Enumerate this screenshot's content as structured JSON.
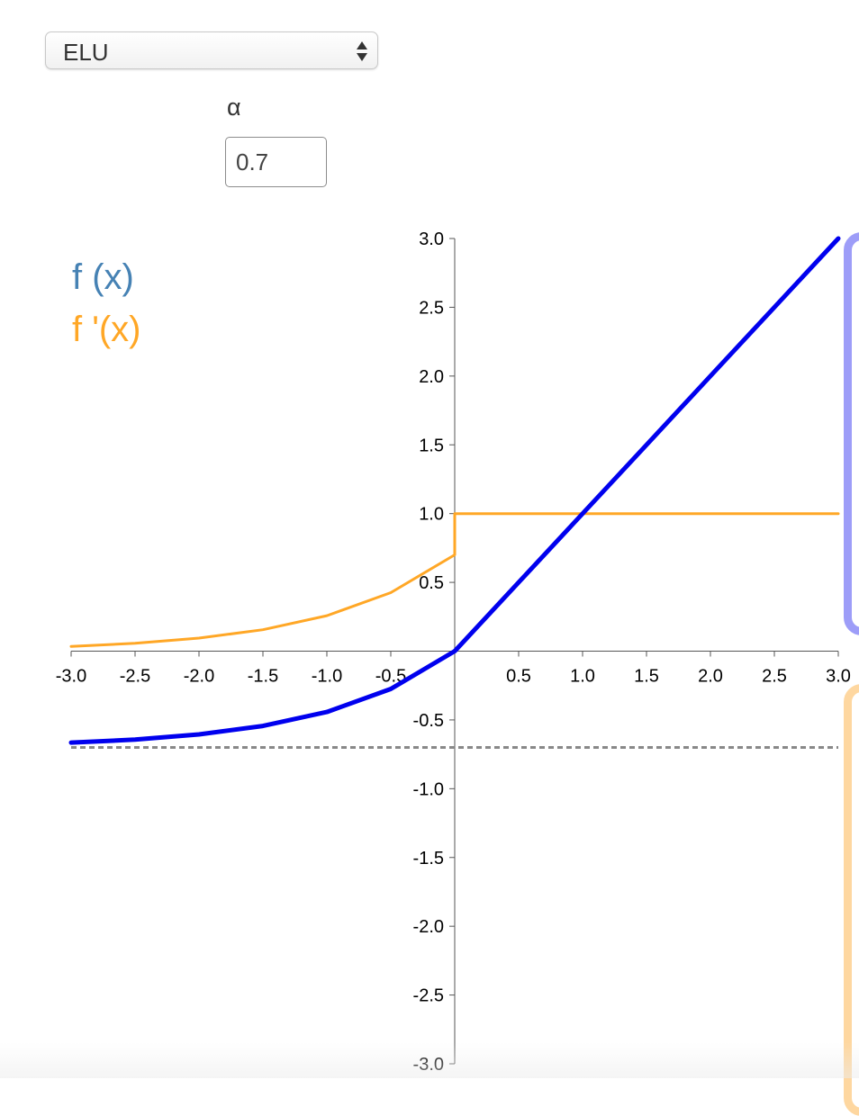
{
  "controls": {
    "function_select": {
      "value": "ELU"
    },
    "alpha": {
      "label": "α",
      "value": "0.7"
    }
  },
  "legend": {
    "f": "f (x)",
    "f_prime": "f '(x)"
  },
  "colors": {
    "f_curve": "#0000ee",
    "f_prime_curve": "#ffa726",
    "legend_f": "#4682b4",
    "legend_f_prime": "#ffa726",
    "asymptote": "#888888",
    "panel_top_border": "#9d9df8",
    "panel_bottom_border": "#fed7a0"
  },
  "chart_data": {
    "type": "line",
    "xlim": [
      -3.0,
      3.0
    ],
    "ylim": [
      -3.0,
      3.0
    ],
    "x_tick_labels": [
      "-3.0",
      "-2.5",
      "-2.0",
      "-1.5",
      "-1.0",
      "-0.5",
      "0.5",
      "1.0",
      "1.5",
      "2.0",
      "2.5",
      "3.0"
    ],
    "y_tick_labels": [
      "3.0",
      "2.5",
      "2.0",
      "1.5",
      "1.0",
      "0.5",
      "-0.5",
      "-1.0",
      "-1.5",
      "-2.0",
      "-2.5",
      "-3.0"
    ],
    "series": [
      {
        "key": "f",
        "x": [
          -3.0,
          -2.5,
          -2.0,
          -1.5,
          -1.0,
          -0.5,
          0.0,
          0.5,
          1.0,
          1.5,
          2.0,
          2.5,
          3.0
        ],
        "y": [
          -0.665,
          -0.643,
          -0.605,
          -0.544,
          -0.442,
          -0.275,
          0.0,
          0.5,
          1.0,
          1.5,
          2.0,
          2.5,
          3.0
        ]
      },
      {
        "key": "f_prime",
        "x": [
          -3.0,
          -2.5,
          -2.0,
          -1.5,
          -1.0,
          -0.5,
          0.0,
          0.0,
          0.5,
          1.0,
          1.5,
          2.0,
          2.5,
          3.0
        ],
        "y": [
          0.035,
          0.057,
          0.095,
          0.156,
          0.258,
          0.425,
          0.7,
          1.0,
          1.0,
          1.0,
          1.0,
          1.0,
          1.0,
          1.0
        ]
      }
    ],
    "asymptote_y": -0.7
  }
}
